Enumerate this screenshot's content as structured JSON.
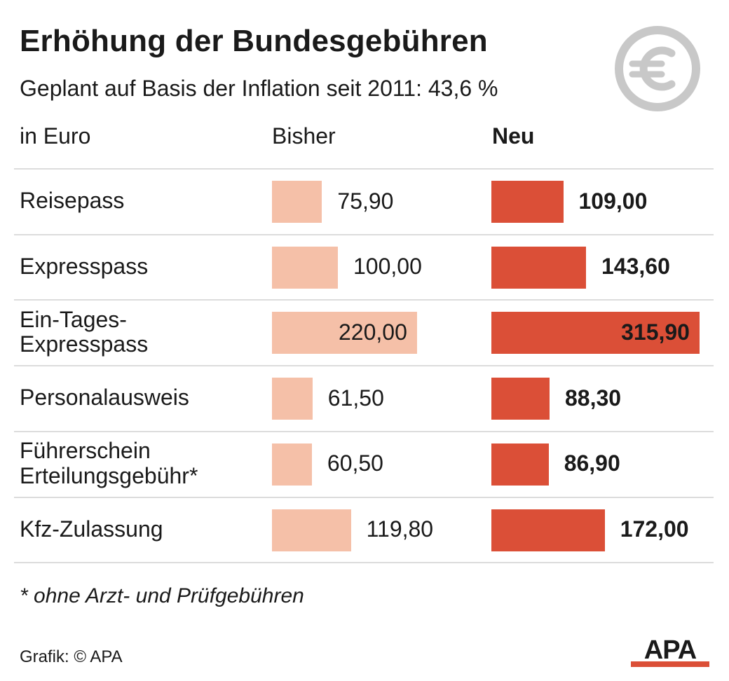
{
  "title": "Erhöhung der Bundesgebühren",
  "subtitle": "Geplant auf Basis der Inflation seit 2011: 43,6 %",
  "icon": "euro-icon",
  "columns": {
    "unit": "in Euro",
    "old": "Bisher",
    "new": "Neu"
  },
  "colors": {
    "old": "#f5c0a8",
    "new": "#db4f37",
    "icon": "#c8c8c8",
    "rule": "#dcdcdc"
  },
  "chart_data": {
    "type": "bar",
    "orientation": "horizontal",
    "categories": [
      "Reisepass",
      "Expresspass",
      "Ein-Tages-\nExpresspass",
      "Personalausweis",
      "Führerschein\nErteilungsgebühr*",
      "Kfz-Zulassung"
    ],
    "series": [
      {
        "name": "Bisher",
        "values": [
          75.9,
          100.0,
          220.0,
          61.5,
          60.5,
          119.8
        ],
        "labels": [
          "75,90",
          "100,00",
          "220,00",
          "61,50",
          "60,50",
          "119,80"
        ]
      },
      {
        "name": "Neu",
        "values": [
          109.0,
          143.6,
          315.9,
          88.3,
          86.9,
          172.0
        ],
        "labels": [
          "109,00",
          "143,60",
          "315,90",
          "88,30",
          "86,90",
          "172,00"
        ]
      }
    ],
    "title": "Erhöhung der Bundesgebühren",
    "xlabel": "",
    "ylabel": "in Euro",
    "grid": false
  },
  "footnote": "* ohne Arzt- und Prüfgebühren",
  "source": "Grafik: © APA",
  "logo": "APA"
}
